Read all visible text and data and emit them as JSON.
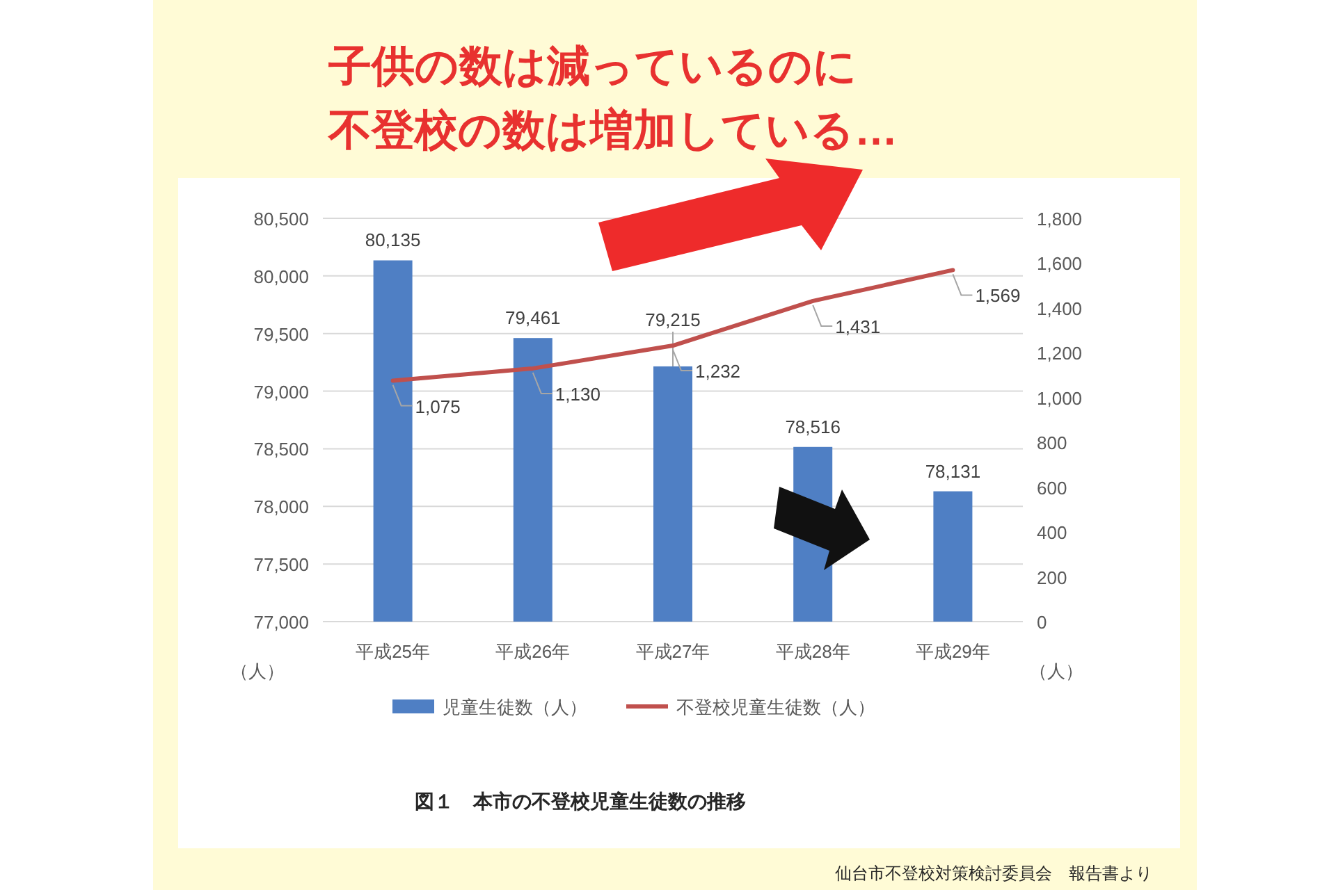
{
  "chart_data": {
    "type": "bar",
    "title": "子供の数は減っているのに不登校の数は増加している…",
    "subtitle": "図１　本市の不登校児童生徒数の推移",
    "annotations": [
      "仙台市不登校対策検討委員会　報告書より"
    ],
    "ylabel": "（人）",
    "y2label": "（人）",
    "categories": [
      "平成25年",
      "平成26年",
      "平成27年",
      "平成28年",
      "平成29年"
    ],
    "series": [
      {
        "name": "児童生徒数（人）",
        "color": "#4f7fc4",
        "values": [
          80135,
          79461,
          79215,
          78516,
          78131
        ],
        "value_labels": [
          "80,135",
          "79,461",
          "79,215",
          "78,516",
          "78,131"
        ]
      },
      {
        "name": "不登校児童生徒数（人）",
        "type": "line",
        "axis": "y2",
        "color": "#c0504d",
        "values": [
          1075,
          1130,
          1232,
          1431,
          1569
        ],
        "value_labels": [
          "1,075",
          "1,130",
          "1,232",
          "1,431",
          "1,569"
        ]
      }
    ],
    "ylim": [
      77000,
      80500
    ],
    "yticks": [
      {
        "value": 77000,
        "label": "77,000"
      },
      {
        "value": 77500,
        "label": "77,500"
      },
      {
        "value": 78000,
        "label": "78,000"
      },
      {
        "value": 78500,
        "label": "78,500"
      },
      {
        "value": 79000,
        "label": "79,000"
      },
      {
        "value": 79500,
        "label": "79,500"
      },
      {
        "value": 80000,
        "label": "80,000"
      },
      {
        "value": 80500,
        "label": "80,500"
      }
    ],
    "y2lim": [
      0,
      1800
    ],
    "y2ticks": [
      0,
      200,
      400,
      600,
      800,
      {
        "value": 1000,
        "label": "1,000"
      },
      {
        "value": 1200,
        "label": "1,200"
      },
      {
        "value": 1400,
        "label": "1,400"
      },
      {
        "value": 1600,
        "label": "1,600"
      },
      {
        "value": 1800,
        "label": "1,800"
      }
    ],
    "grid": "y",
    "legend": "bottom"
  }
}
